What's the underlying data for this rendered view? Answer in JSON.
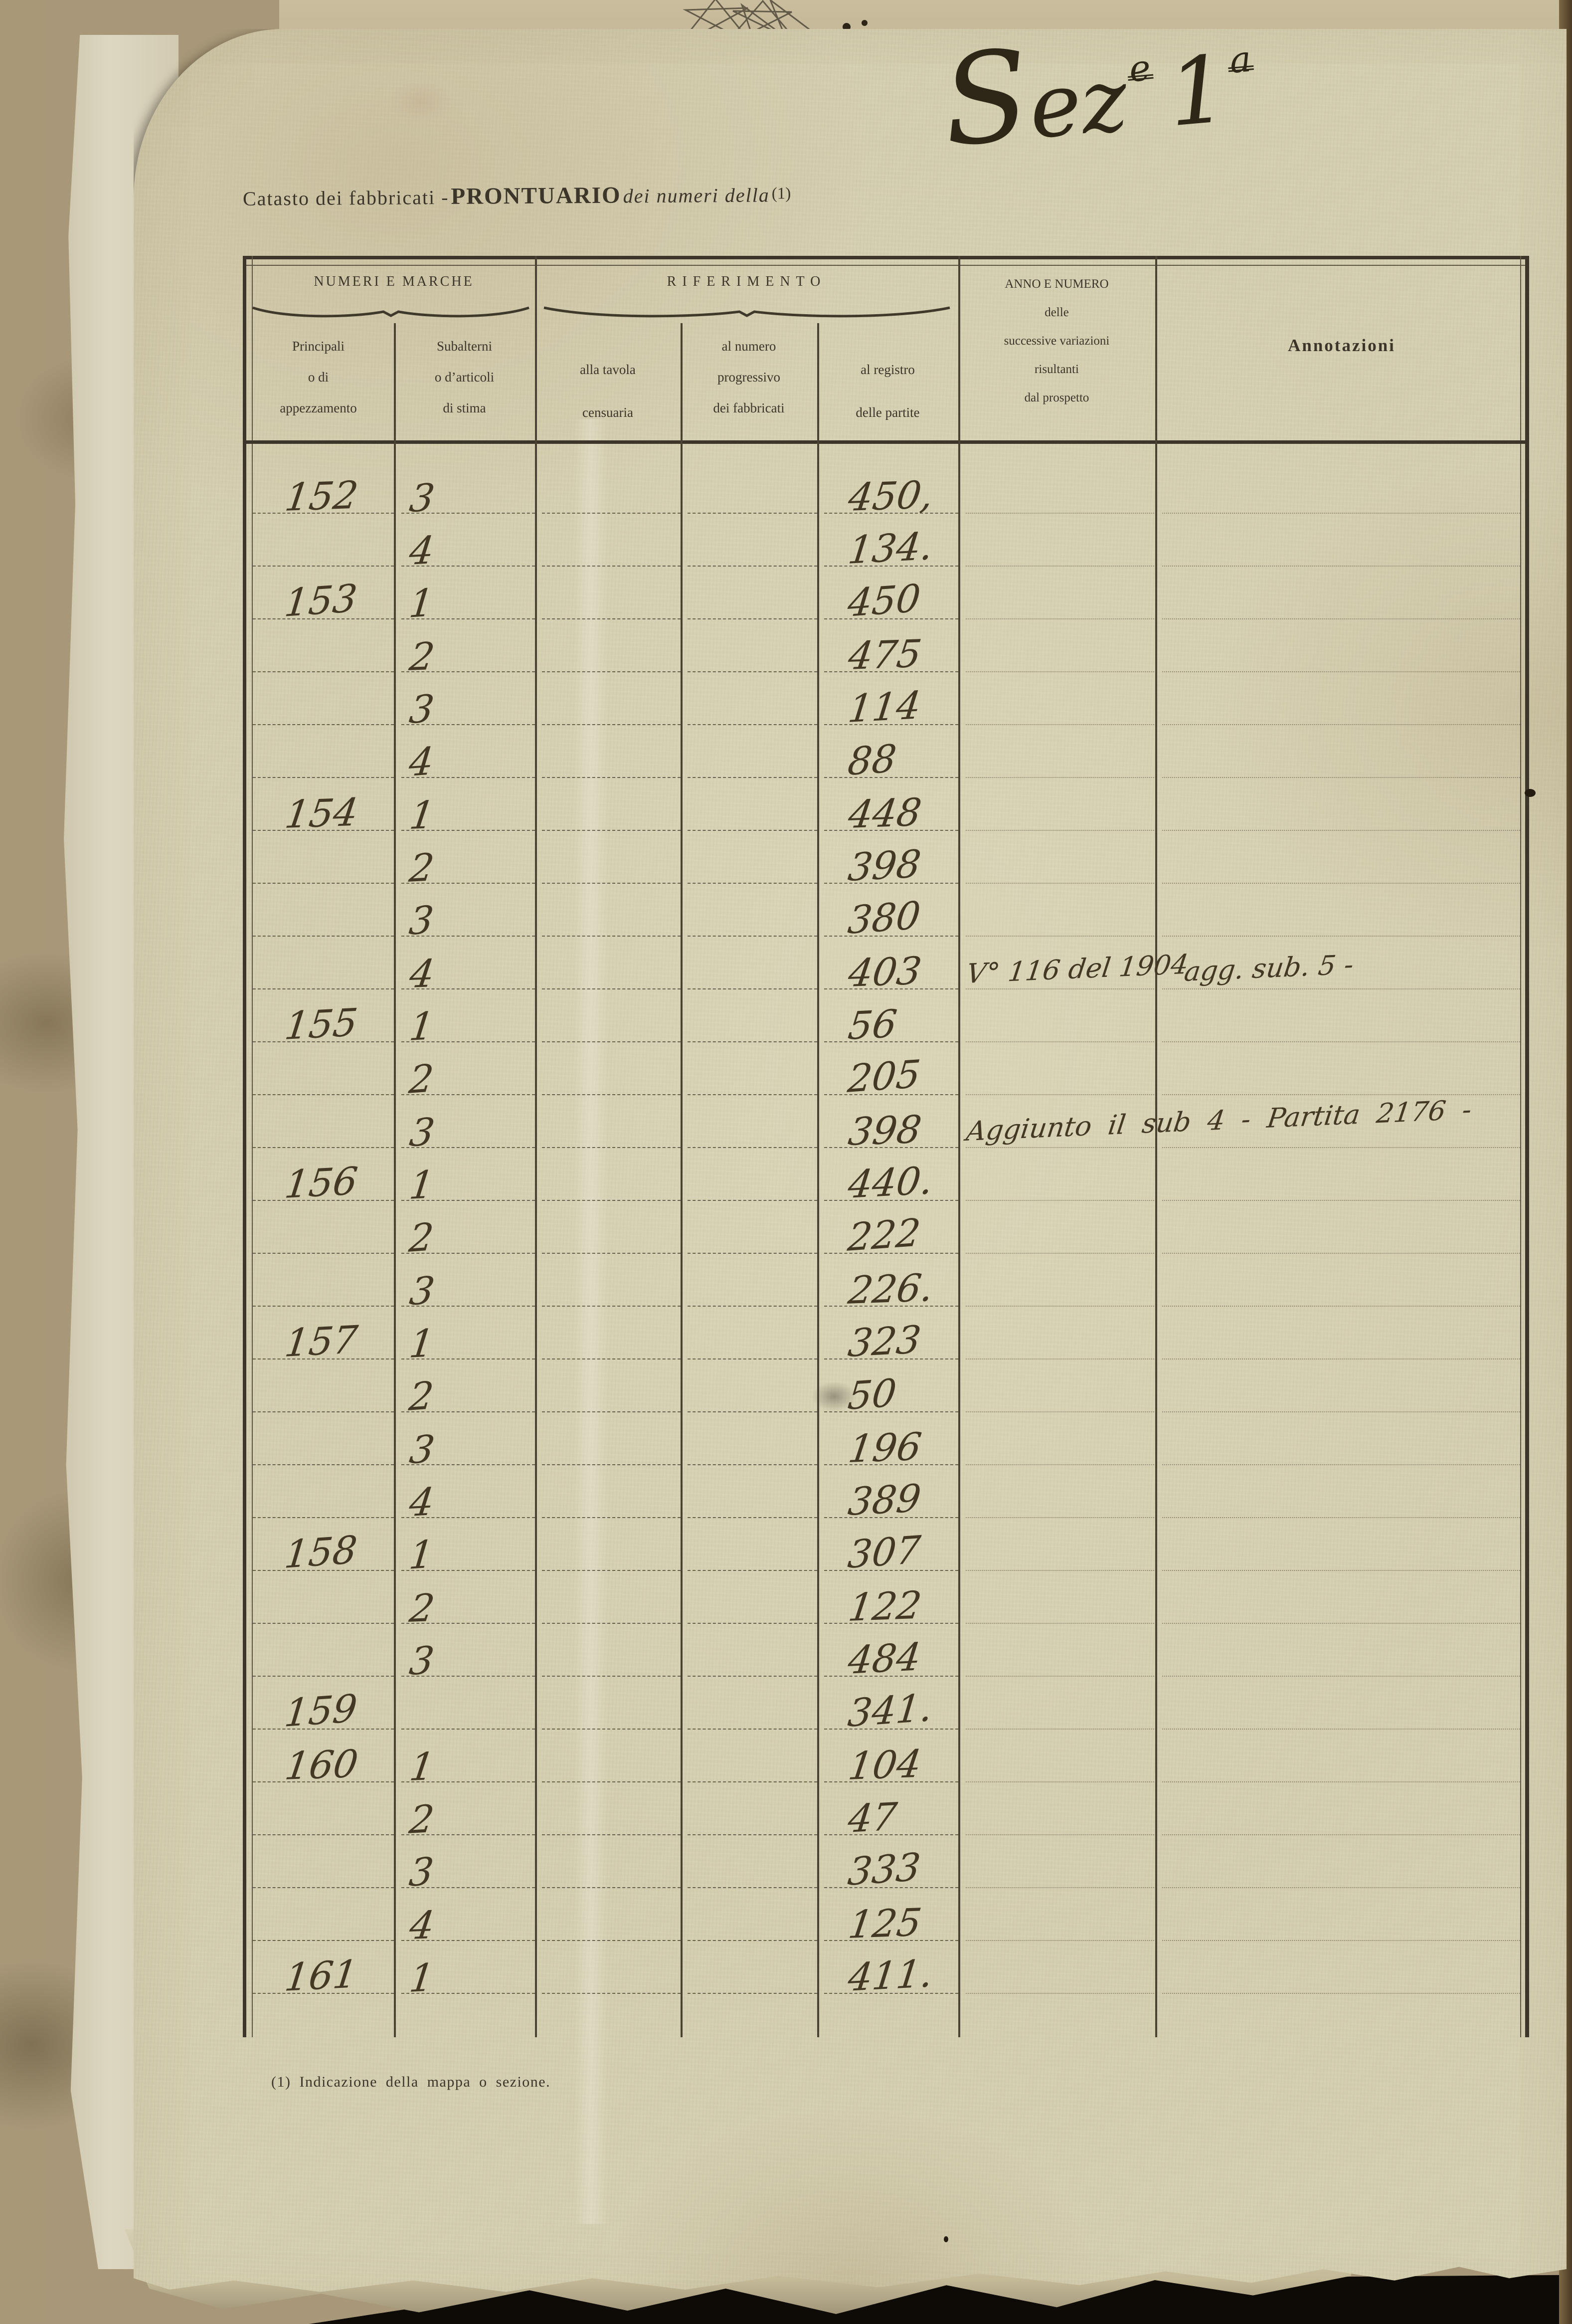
{
  "document": {
    "title_prefix": "Catasto dei fabbricati -",
    "title_main": "PRONTUARIO",
    "title_middle": "dei numeri della",
    "title_footnote_marker": "(1)",
    "section_script": {
      "word": "Sez",
      "sup1": "e",
      "number": "1",
      "sup2": "a"
    },
    "footnote": "(1) Indicazione della mappa o sezione."
  },
  "table": {
    "group_headers": [
      {
        "label": "NUMERI E MARCHE"
      },
      {
        "label": "RIFERIMENTO"
      }
    ],
    "columns": [
      {
        "id": "principali",
        "lines": [
          "Principali",
          "o di",
          "appezzamento"
        ]
      },
      {
        "id": "subalterni",
        "lines": [
          "Subalterni",
          "o d’articoli",
          "di stima"
        ]
      },
      {
        "id": "tavola",
        "lines": [
          "alla tavola",
          "censuaria"
        ]
      },
      {
        "id": "numero",
        "lines": [
          "al numero",
          "progressivo",
          "dei fabbricati"
        ]
      },
      {
        "id": "registro",
        "lines": [
          "al registro",
          "delle partite"
        ]
      },
      {
        "id": "anno",
        "lines": [
          "ANNO E NUMERO",
          "delle",
          "successive variazioni",
          "risultanti",
          "dal prospetto"
        ]
      },
      {
        "id": "annotazioni",
        "lines": [
          "Annotazioni"
        ]
      }
    ],
    "rows": [
      {
        "principale": "152",
        "subalterno": "3",
        "registro": "450,",
        "anno": "",
        "annotazione": "",
        "annotazione_estesa": ""
      },
      {
        "principale": "",
        "subalterno": "4",
        "registro": "134.",
        "anno": "",
        "annotazione": "",
        "annotazione_estesa": ""
      },
      {
        "principale": "153",
        "subalterno": "1",
        "registro": "450",
        "anno": "",
        "annotazione": "",
        "annotazione_estesa": ""
      },
      {
        "principale": "",
        "subalterno": "2",
        "registro": "475",
        "anno": "",
        "annotazione": "",
        "annotazione_estesa": ""
      },
      {
        "principale": "",
        "subalterno": "3",
        "registro": "114",
        "anno": "",
        "annotazione": "",
        "annotazione_estesa": ""
      },
      {
        "principale": "",
        "subalterno": "4",
        "registro": "88",
        "anno": "",
        "annotazione": "",
        "annotazione_estesa": ""
      },
      {
        "principale": "154",
        "subalterno": "1",
        "registro": "448",
        "anno": "",
        "annotazione": "",
        "annotazione_estesa": ""
      },
      {
        "principale": "",
        "subalterno": "2",
        "registro": "398",
        "anno": "",
        "annotazione": "",
        "annotazione_estesa": ""
      },
      {
        "principale": "",
        "subalterno": "3",
        "registro": "380",
        "anno": "",
        "annotazione": "",
        "annotazione_estesa": ""
      },
      {
        "principale": "",
        "subalterno": "4",
        "registro": "403",
        "anno": "V° 116 del 1904",
        "annotazione": "agg. sub. 5 -",
        "annotazione_estesa": ""
      },
      {
        "principale": "155",
        "subalterno": "1",
        "registro": "56",
        "anno": "",
        "annotazione": "",
        "annotazione_estesa": ""
      },
      {
        "principale": "",
        "subalterno": "2",
        "registro": "205",
        "anno": "",
        "annotazione": "",
        "annotazione_estesa": ""
      },
      {
        "principale": "",
        "subalterno": "3",
        "registro": "398",
        "anno": "",
        "annotazione": "",
        "annotazione_estesa": "Aggiunto il sub 4 - Partita 2176 -"
      },
      {
        "principale": "156",
        "subalterno": "1",
        "registro": "440.",
        "anno": "",
        "annotazione": "",
        "annotazione_estesa": ""
      },
      {
        "principale": "",
        "subalterno": "2",
        "registro": "222",
        "anno": "",
        "annotazione": "",
        "annotazione_estesa": ""
      },
      {
        "principale": "",
        "subalterno": "3",
        "registro": "226.",
        "anno": "",
        "annotazione": "",
        "annotazione_estesa": ""
      },
      {
        "principale": "157",
        "subalterno": "1",
        "registro": "323",
        "anno": "",
        "annotazione": "",
        "annotazione_estesa": ""
      },
      {
        "principale": "",
        "subalterno": "2",
        "registro": "50",
        "anno": "",
        "annotazione": "",
        "annotazione_estesa": ""
      },
      {
        "principale": "",
        "subalterno": "3",
        "registro": "196",
        "anno": "",
        "annotazione": "",
        "annotazione_estesa": ""
      },
      {
        "principale": "",
        "subalterno": "4",
        "registro": "389",
        "anno": "",
        "annotazione": "",
        "annotazione_estesa": ""
      },
      {
        "principale": "158",
        "subalterno": "1",
        "registro": "307",
        "anno": "",
        "annotazione": "",
        "annotazione_estesa": ""
      },
      {
        "principale": "",
        "subalterno": "2",
        "registro": "122",
        "anno": "",
        "annotazione": "",
        "annotazione_estesa": ""
      },
      {
        "principale": "",
        "subalterno": "3",
        "registro": "484",
        "anno": "",
        "annotazione": "",
        "annotazione_estesa": ""
      },
      {
        "principale": "159",
        "subalterno": "",
        "registro": "341.",
        "anno": "",
        "annotazione": "",
        "annotazione_estesa": ""
      },
      {
        "principale": "160",
        "subalterno": "1",
        "registro": "104",
        "anno": "",
        "annotazione": "",
        "annotazione_estesa": ""
      },
      {
        "principale": "",
        "subalterno": "2",
        "registro": "47",
        "anno": "",
        "annotazione": "",
        "annotazione_estesa": ""
      },
      {
        "principale": "",
        "subalterno": "3",
        "registro": "333",
        "anno": "",
        "annotazione": "",
        "annotazione_estesa": ""
      },
      {
        "principale": "",
        "subalterno": "4",
        "registro": "125",
        "anno": "",
        "annotazione": "",
        "annotazione_estesa": ""
      },
      {
        "principale": "161",
        "subalterno": "1",
        "registro": "411.",
        "anno": "",
        "annotazione": "",
        "annotazione_estesa": ""
      }
    ]
  },
  "colors": {
    "page": "#d4ceb0",
    "cover": "#a89879",
    "print_ink": "#3b352a",
    "hand_ink": "#433824",
    "table_line": "#4a4334"
  }
}
